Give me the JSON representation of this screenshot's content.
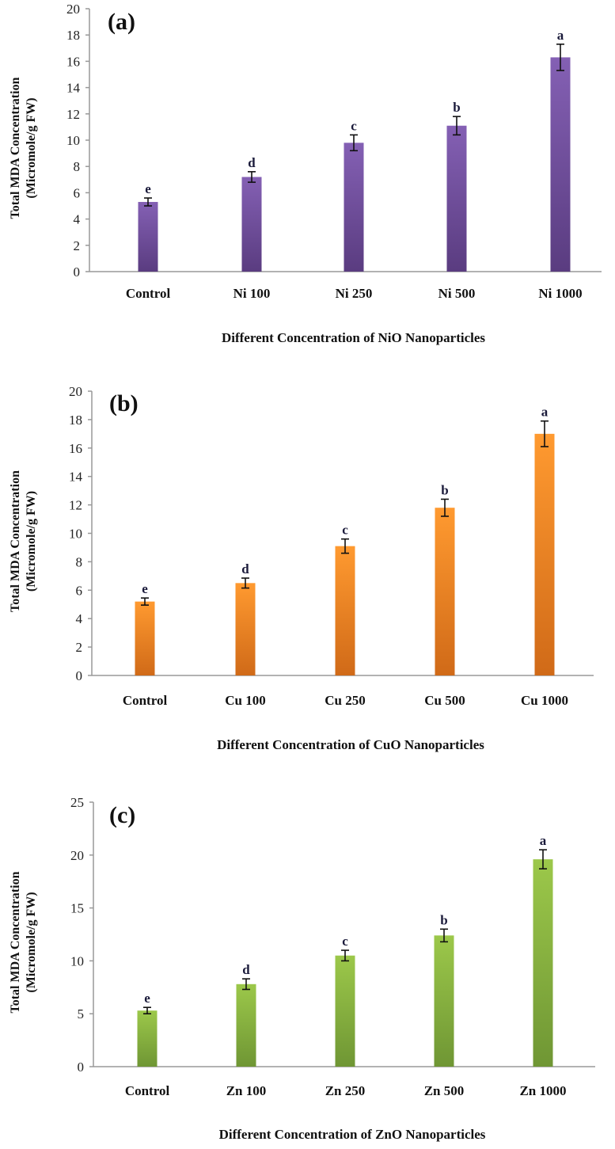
{
  "chart_data": [
    {
      "type": "bar",
      "panel_label": "(a)",
      "categories": [
        "Control",
        "Ni 100",
        "Ni 250",
        "Ni 500",
        "Ni 1000"
      ],
      "values": [
        5.3,
        7.2,
        9.8,
        11.1,
        16.3
      ],
      "errors": [
        0.3,
        0.4,
        0.6,
        0.7,
        1.0
      ],
      "significance": [
        "e",
        "d",
        "c",
        "b",
        "a"
      ],
      "xlabel": "Different Concentration  of NiO Nanoparticles",
      "ylabel_line1": "Total  MDA  Concentration",
      "ylabel_line2": "(Micromole/g  FW)",
      "ylim": [
        0,
        20
      ],
      "yticks": [
        0,
        2,
        4,
        6,
        8,
        10,
        12,
        14,
        16,
        18,
        20
      ],
      "color_top": "#8460b4",
      "color_bottom": "#5a3c80",
      "grid": false
    },
    {
      "type": "bar",
      "panel_label": "(b)",
      "categories": [
        "Control",
        "Cu 100",
        "Cu 250",
        "Cu 500",
        "Cu 1000"
      ],
      "values": [
        5.2,
        6.5,
        9.1,
        11.8,
        17.0
      ],
      "errors": [
        0.25,
        0.35,
        0.5,
        0.6,
        0.9
      ],
      "significance": [
        "e",
        "d",
        "c",
        "b",
        "a"
      ],
      "xlabel": "Different Concentration  of CuO Nanoparticles",
      "ylabel_line1": "Total  MDA  Concentration",
      "ylabel_line2": "(Micromole/g  FW)",
      "ylim": [
        0,
        20
      ],
      "yticks": [
        0,
        2,
        4,
        6,
        8,
        10,
        12,
        14,
        16,
        18,
        20
      ],
      "color_top": "#ff9a30",
      "color_bottom": "#d06a18",
      "grid": false
    },
    {
      "type": "bar",
      "panel_label": "(c)",
      "categories": [
        "Control",
        "Zn 100",
        "Zn 250",
        "Zn 500",
        "Zn 1000"
      ],
      "values": [
        5.3,
        7.8,
        10.5,
        12.4,
        19.6
      ],
      "errors": [
        0.3,
        0.5,
        0.5,
        0.6,
        0.9
      ],
      "significance": [
        "e",
        "d",
        "c",
        "b",
        "a"
      ],
      "xlabel": "Different Concentration  of ZnO Nanoparticles",
      "ylabel_line1": "Total  MDA  Concentration",
      "ylabel_line2": "(Micromole/g  FW)",
      "ylim": [
        0,
        25
      ],
      "yticks": [
        0,
        5,
        10,
        15,
        20,
        25
      ],
      "color_top": "#9cc84a",
      "color_bottom": "#6f9634",
      "grid": false
    }
  ]
}
